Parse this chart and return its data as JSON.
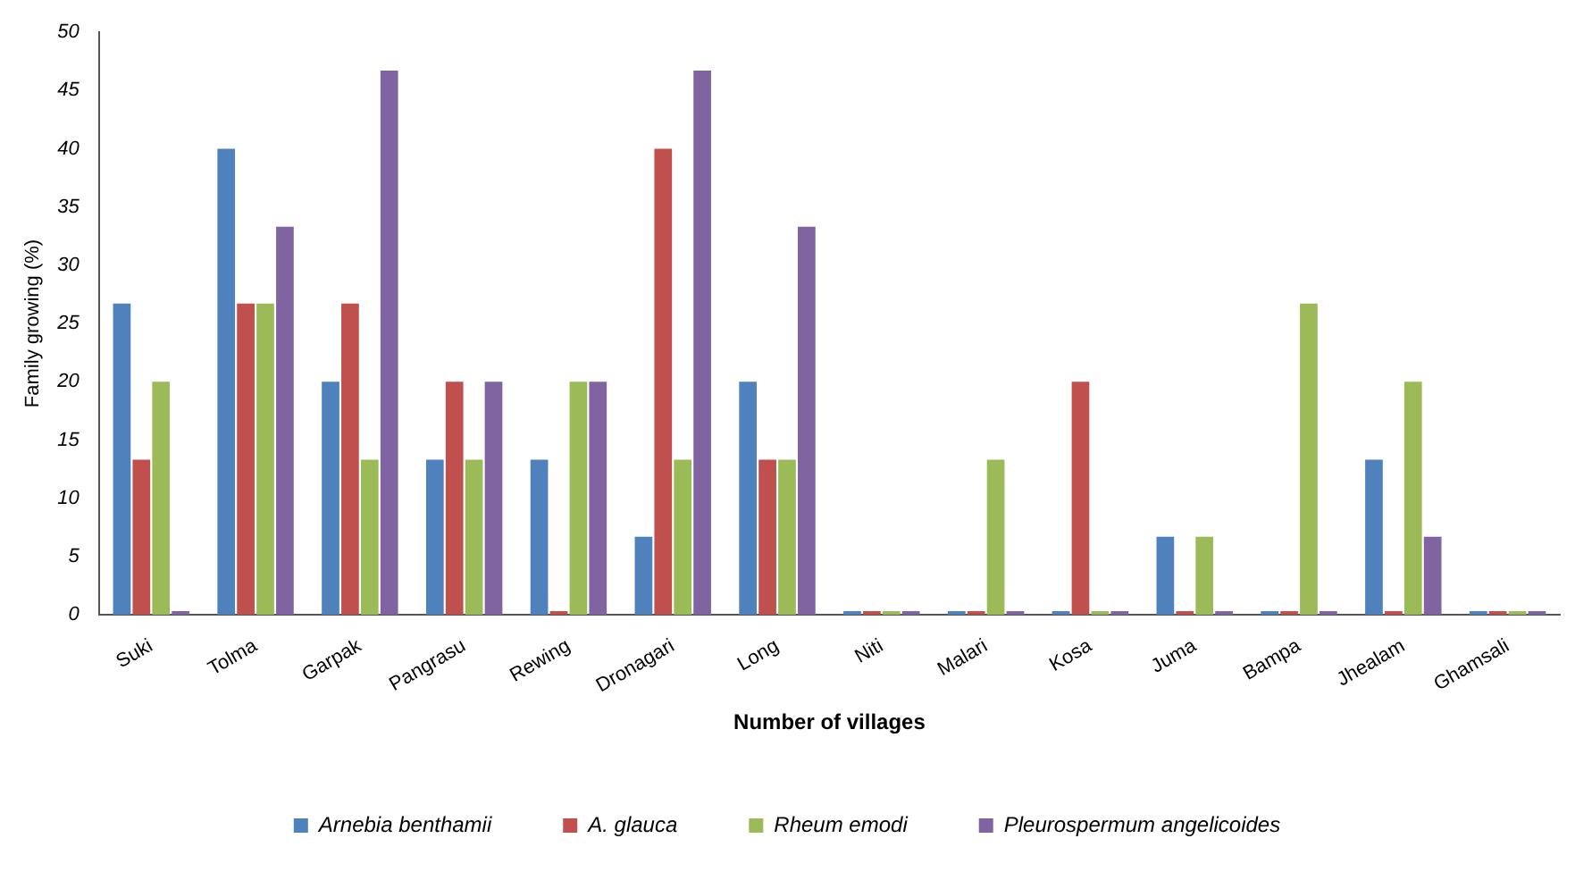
{
  "chart_data": {
    "type": "bar",
    "xlabel": "Number of villages",
    "ylabel": "Family growing (%)",
    "categories": [
      "Suki",
      "Tolma",
      "Garpak",
      "Pangrasu",
      "Rewing",
      "Dronagari",
      "Long",
      "Niti",
      "Malari",
      "Kosa",
      "Juma",
      "Bampa",
      "Jhealam",
      "Ghamsali"
    ],
    "series": [
      {
        "name": "Arnebia benthamii",
        "color": "#4f81bd",
        "values": [
          26.7,
          40,
          20,
          13.3,
          13.3,
          6.7,
          20,
          0,
          0,
          0,
          6.7,
          0,
          13.3,
          0
        ]
      },
      {
        "name": "A. glauca",
        "color": "#c0504d",
        "values": [
          13.3,
          26.7,
          26.7,
          20,
          0,
          40,
          13.3,
          0,
          0,
          20,
          0,
          0,
          0,
          0
        ]
      },
      {
        "name": "Rheum emodi",
        "color": "#9bbb59",
        "values": [
          20,
          26.7,
          13.3,
          13.3,
          20,
          13.3,
          13.3,
          0,
          13.3,
          0,
          6.7,
          26.7,
          20,
          0
        ]
      },
      {
        "name": "Pleurospermum angelicoides",
        "color": "#8064a2",
        "values": [
          0,
          33.3,
          46.7,
          20,
          20,
          46.7,
          33.3,
          0,
          0,
          0,
          0,
          0,
          6.7,
          0
        ]
      }
    ],
    "ylim": [
      0,
      50
    ],
    "yticks": [
      0,
      5,
      10,
      15,
      20,
      25,
      30,
      35,
      40,
      45,
      50
    ],
    "grid": false,
    "legend": "bottom"
  }
}
